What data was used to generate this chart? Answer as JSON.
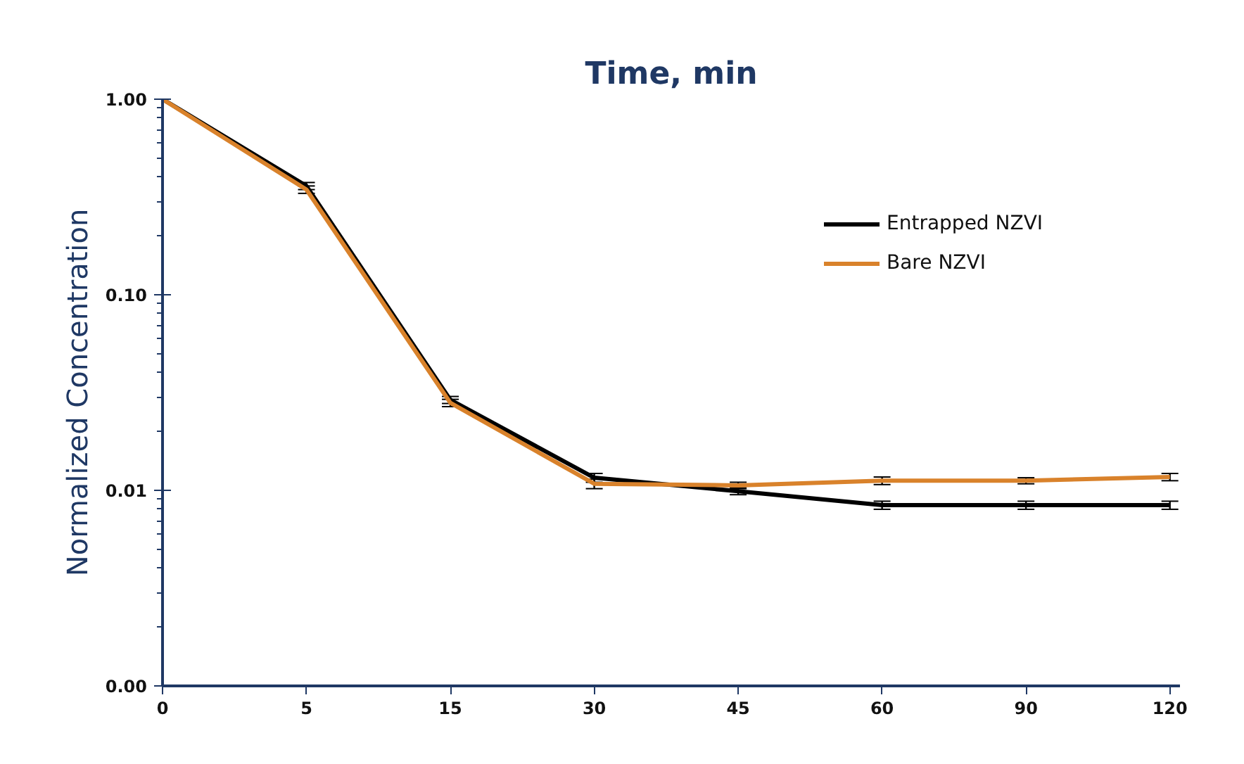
{
  "chart_data": {
    "type": "line",
    "xlabel": "Time, min",
    "ylabel": "Normalized Concentration",
    "categories": [
      "0",
      "5",
      "15",
      "30",
      "45",
      "60",
      "90",
      "120"
    ],
    "series": [
      {
        "name": "Entrapped NZVI",
        "color": "#000000",
        "values": [
          1.0,
          0.36,
          0.029,
          0.0116,
          0.0099,
          0.0084,
          0.0084,
          0.0084
        ],
        "errors": [
          null,
          0.015,
          0.0012,
          0.0006,
          0.0004,
          0.0004,
          0.0004,
          0.0004
        ]
      },
      {
        "name": "Bare NZVI",
        "color": "#d9822b",
        "values": [
          1.0,
          0.345,
          0.028,
          0.0108,
          0.0106,
          0.0112,
          0.0112,
          0.0117
        ],
        "errors": [
          null,
          0.015,
          0.0012,
          0.0006,
          0.0004,
          0.0005,
          0.0004,
          0.0005
        ]
      }
    ],
    "log": true,
    "ylim": [
      0.001,
      1.0
    ],
    "yticks": [
      {
        "value": 0.001,
        "label": "0.00"
      },
      {
        "value": 0.01,
        "label": "0.01"
      },
      {
        "value": 0.1,
        "label": "0.10"
      },
      {
        "value": 1.0,
        "label": "1.00"
      }
    ],
    "grid": false,
    "legend": "right",
    "marker": "none",
    "line_style": "solid"
  }
}
